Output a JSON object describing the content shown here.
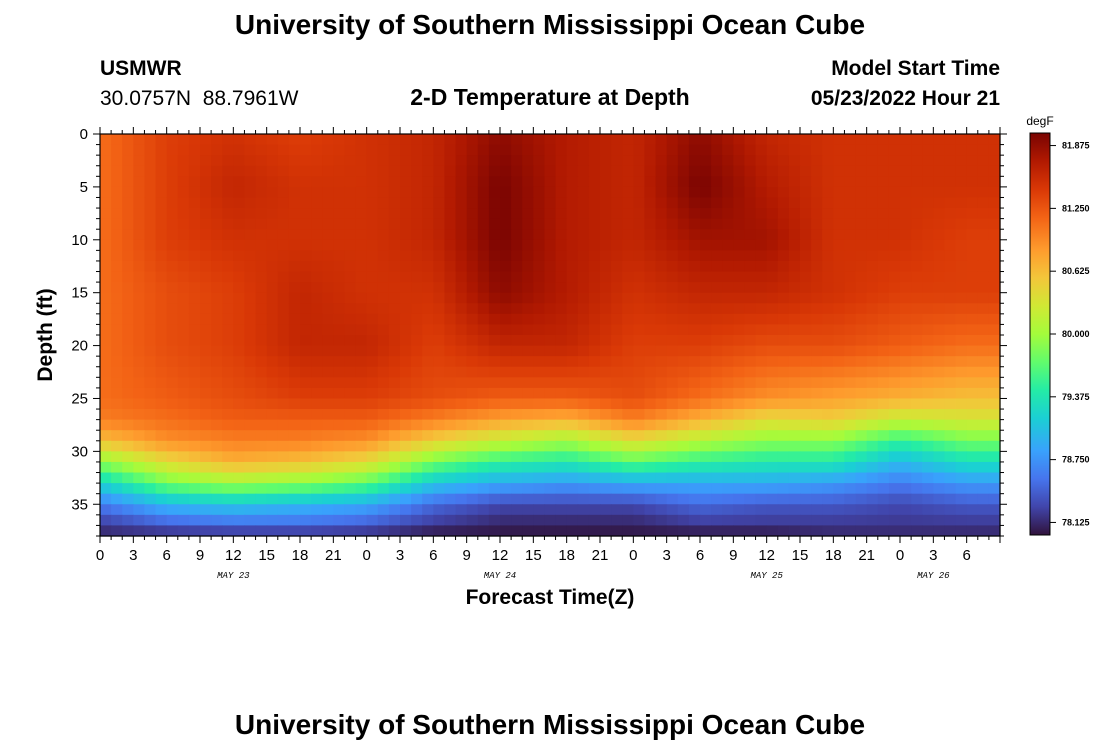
{
  "header": {
    "title": "University of Southern Mississippi Ocean Cube",
    "station": "USMWR",
    "coordinates": "30.0757N  88.7961W",
    "product": "2-D Temperature at Depth",
    "model_label": "Model Start Time",
    "model_time": "05/23/2022 Hour 21"
  },
  "footer": {
    "title": "University of Southern Mississippi Ocean Cube"
  },
  "chart_data": {
    "type": "heatmap",
    "title": "2-D Temperature at Depth",
    "xlabel": "Forecast Time(Z)",
    "ylabel": "Depth (ft)",
    "x_hours_range": [
      0,
      81
    ],
    "x_ticks": [
      {
        "label": "0",
        "hour": 0
      },
      {
        "label": "3",
        "hour": 3
      },
      {
        "label": "6",
        "hour": 6
      },
      {
        "label": "9",
        "hour": 9
      },
      {
        "label": "12",
        "hour": 12
      },
      {
        "label": "15",
        "hour": 15
      },
      {
        "label": "18",
        "hour": 18
      },
      {
        "label": "21",
        "hour": 21
      },
      {
        "label": "0",
        "hour": 24
      },
      {
        "label": "3",
        "hour": 27
      },
      {
        "label": "6",
        "hour": 30
      },
      {
        "label": "9",
        "hour": 33
      },
      {
        "label": "12",
        "hour": 36
      },
      {
        "label": "15",
        "hour": 39
      },
      {
        "label": "18",
        "hour": 42
      },
      {
        "label": "21",
        "hour": 45
      },
      {
        "label": "0",
        "hour": 48
      },
      {
        "label": "3",
        "hour": 51
      },
      {
        "label": "6",
        "hour": 54
      },
      {
        "label": "9",
        "hour": 57
      },
      {
        "label": "12",
        "hour": 60
      },
      {
        "label": "15",
        "hour": 63
      },
      {
        "label": "18",
        "hour": 66
      },
      {
        "label": "21",
        "hour": 69
      },
      {
        "label": "0",
        "hour": 72
      },
      {
        "label": "3",
        "hour": 75
      },
      {
        "label": "6",
        "hour": 78
      }
    ],
    "day_labels": [
      {
        "label": "MAY 23",
        "hour": 12
      },
      {
        "label": "MAY 24",
        "hour": 36
      },
      {
        "label": "MAY 25",
        "hour": 60
      },
      {
        "label": "MAY 26",
        "hour": 75
      }
    ],
    "depth_range_ft": [
      0,
      38
    ],
    "y_ticks": [
      0,
      5,
      10,
      15,
      20,
      25,
      30,
      35
    ],
    "colorbar": {
      "unit": "degF",
      "range": [
        78.0,
        82.0
      ],
      "labels": [
        "81.875",
        "81.250",
        "80.625",
        "80.000",
        "79.375",
        "78.750",
        "78.125"
      ]
    },
    "time_grid_hours": [
      0,
      6,
      12,
      18,
      24,
      30,
      36,
      42,
      48,
      54,
      60,
      66,
      72,
      78
    ],
    "depth_grid_ft": [
      0,
      5,
      10,
      15,
      20,
      25,
      27,
      29,
      31,
      33,
      35,
      37,
      38
    ],
    "temperature_degF": [
      [
        81.1,
        81.4,
        81.5,
        81.4,
        81.5,
        81.6,
        81.9,
        81.7,
        81.6,
        81.9,
        81.6,
        81.5,
        81.5,
        81.5
      ],
      [
        81.1,
        81.4,
        81.6,
        81.5,
        81.5,
        81.6,
        82.0,
        81.7,
        81.6,
        82.0,
        81.7,
        81.5,
        81.5,
        81.5
      ],
      [
        81.1,
        81.4,
        81.5,
        81.5,
        81.5,
        81.6,
        82.0,
        81.7,
        81.6,
        81.8,
        81.8,
        81.5,
        81.5,
        81.4
      ],
      [
        81.1,
        81.3,
        81.4,
        81.6,
        81.5,
        81.5,
        81.9,
        81.7,
        81.5,
        81.6,
        81.6,
        81.5,
        81.4,
        81.4
      ],
      [
        81.1,
        81.3,
        81.4,
        81.6,
        81.6,
        81.4,
        81.6,
        81.6,
        81.4,
        81.4,
        81.3,
        81.3,
        81.2,
        81.1
      ],
      [
        81.1,
        81.2,
        81.3,
        81.4,
        81.4,
        81.3,
        81.2,
        81.2,
        81.3,
        81.1,
        80.9,
        80.8,
        80.7,
        80.6
      ],
      [
        81.0,
        81.1,
        81.2,
        81.2,
        81.2,
        81.0,
        80.8,
        80.7,
        81.0,
        80.7,
        80.4,
        80.5,
        80.2,
        80.3
      ],
      [
        80.6,
        80.9,
        81.0,
        81.0,
        80.9,
        80.5,
        80.2,
        80.0,
        80.4,
        80.1,
        79.9,
        79.9,
        79.5,
        79.8
      ],
      [
        79.9,
        80.4,
        80.7,
        80.6,
        80.4,
        79.8,
        79.5,
        79.4,
        79.7,
        79.5,
        79.4,
        79.4,
        79.0,
        79.3
      ],
      [
        79.2,
        79.8,
        80.0,
        79.9,
        79.7,
        79.1,
        78.9,
        78.8,
        78.9,
        78.9,
        78.9,
        78.8,
        78.6,
        78.8
      ],
      [
        78.6,
        79.0,
        79.1,
        79.0,
        78.9,
        78.5,
        78.3,
        78.3,
        78.3,
        78.5,
        78.4,
        78.4,
        78.3,
        78.4
      ],
      [
        78.2,
        78.4,
        78.5,
        78.5,
        78.4,
        78.2,
        78.1,
        78.1,
        78.1,
        78.2,
        78.2,
        78.2,
        78.2,
        78.2
      ],
      [
        78.1,
        78.1,
        78.1,
        78.1,
        78.1,
        78.0,
        78.0,
        78.0,
        78.0,
        78.0,
        78.0,
        78.1,
        78.1,
        78.1
      ]
    ]
  }
}
